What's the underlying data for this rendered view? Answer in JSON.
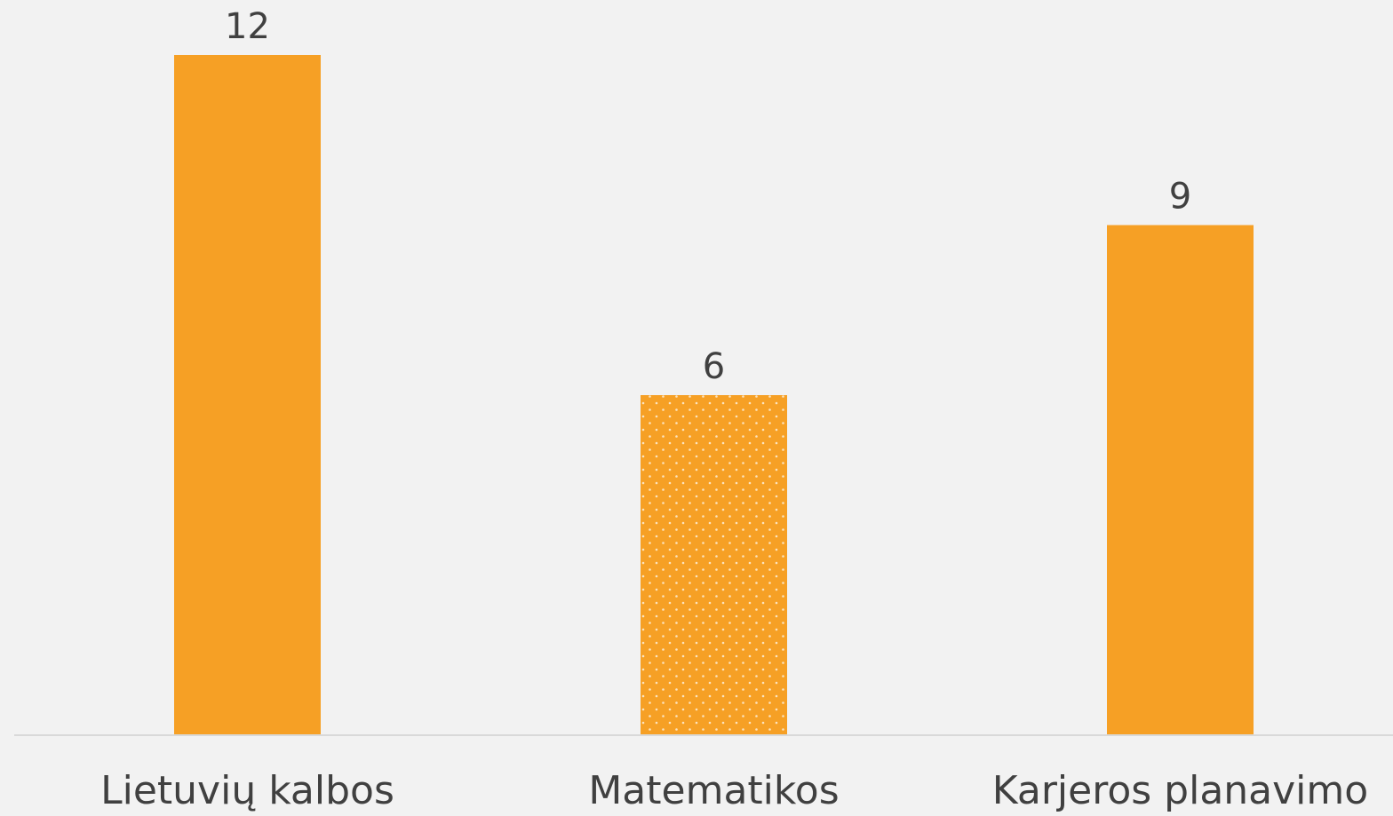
{
  "chart_data": {
    "type": "bar",
    "categories": [
      "Lietuvių kalbos",
      "Matematikos",
      "Karjeros planavimo"
    ],
    "values": [
      12,
      6,
      9
    ],
    "color": "#f6a025",
    "bar_patterns": [
      "solid",
      "dots",
      "solid"
    ],
    "ylim": [
      0,
      12
    ],
    "grid": false
  }
}
